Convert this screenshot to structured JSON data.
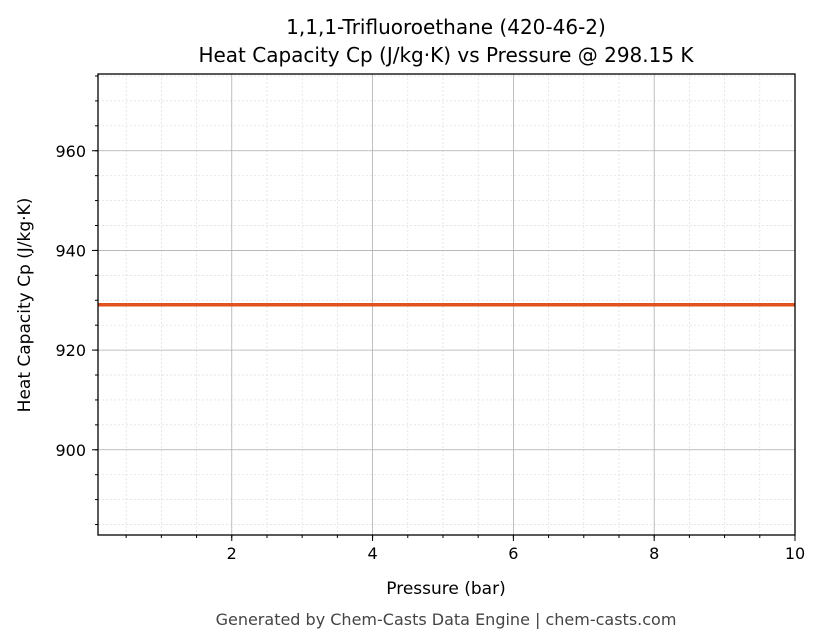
{
  "chart_data": {
    "type": "line",
    "title": "1,1,1-Trifluoroethane (420-46-2)",
    "subtitle": "Heat Capacity Cp (J/kg·K) vs Pressure @ 298.15 K",
    "xlabel": "Pressure (bar)",
    "ylabel": "Heat Capacity Cp (J/kg·K)",
    "xlim": [
      0.1,
      10
    ],
    "ylim": [
      882.9,
      975.4
    ],
    "xticks": [
      2,
      4,
      6,
      8,
      10
    ],
    "yticks": [
      900,
      920,
      940,
      960
    ],
    "x_minor_step": 0.5,
    "y_minor_step": 5,
    "grid": true,
    "series": [
      {
        "name": "Cp",
        "color": "#e0521e",
        "x": [
          0.1,
          10
        ],
        "y": [
          929.1,
          929.1
        ]
      }
    ]
  },
  "footer": "Generated by Chem-Casts Data Engine | chem-casts.com"
}
